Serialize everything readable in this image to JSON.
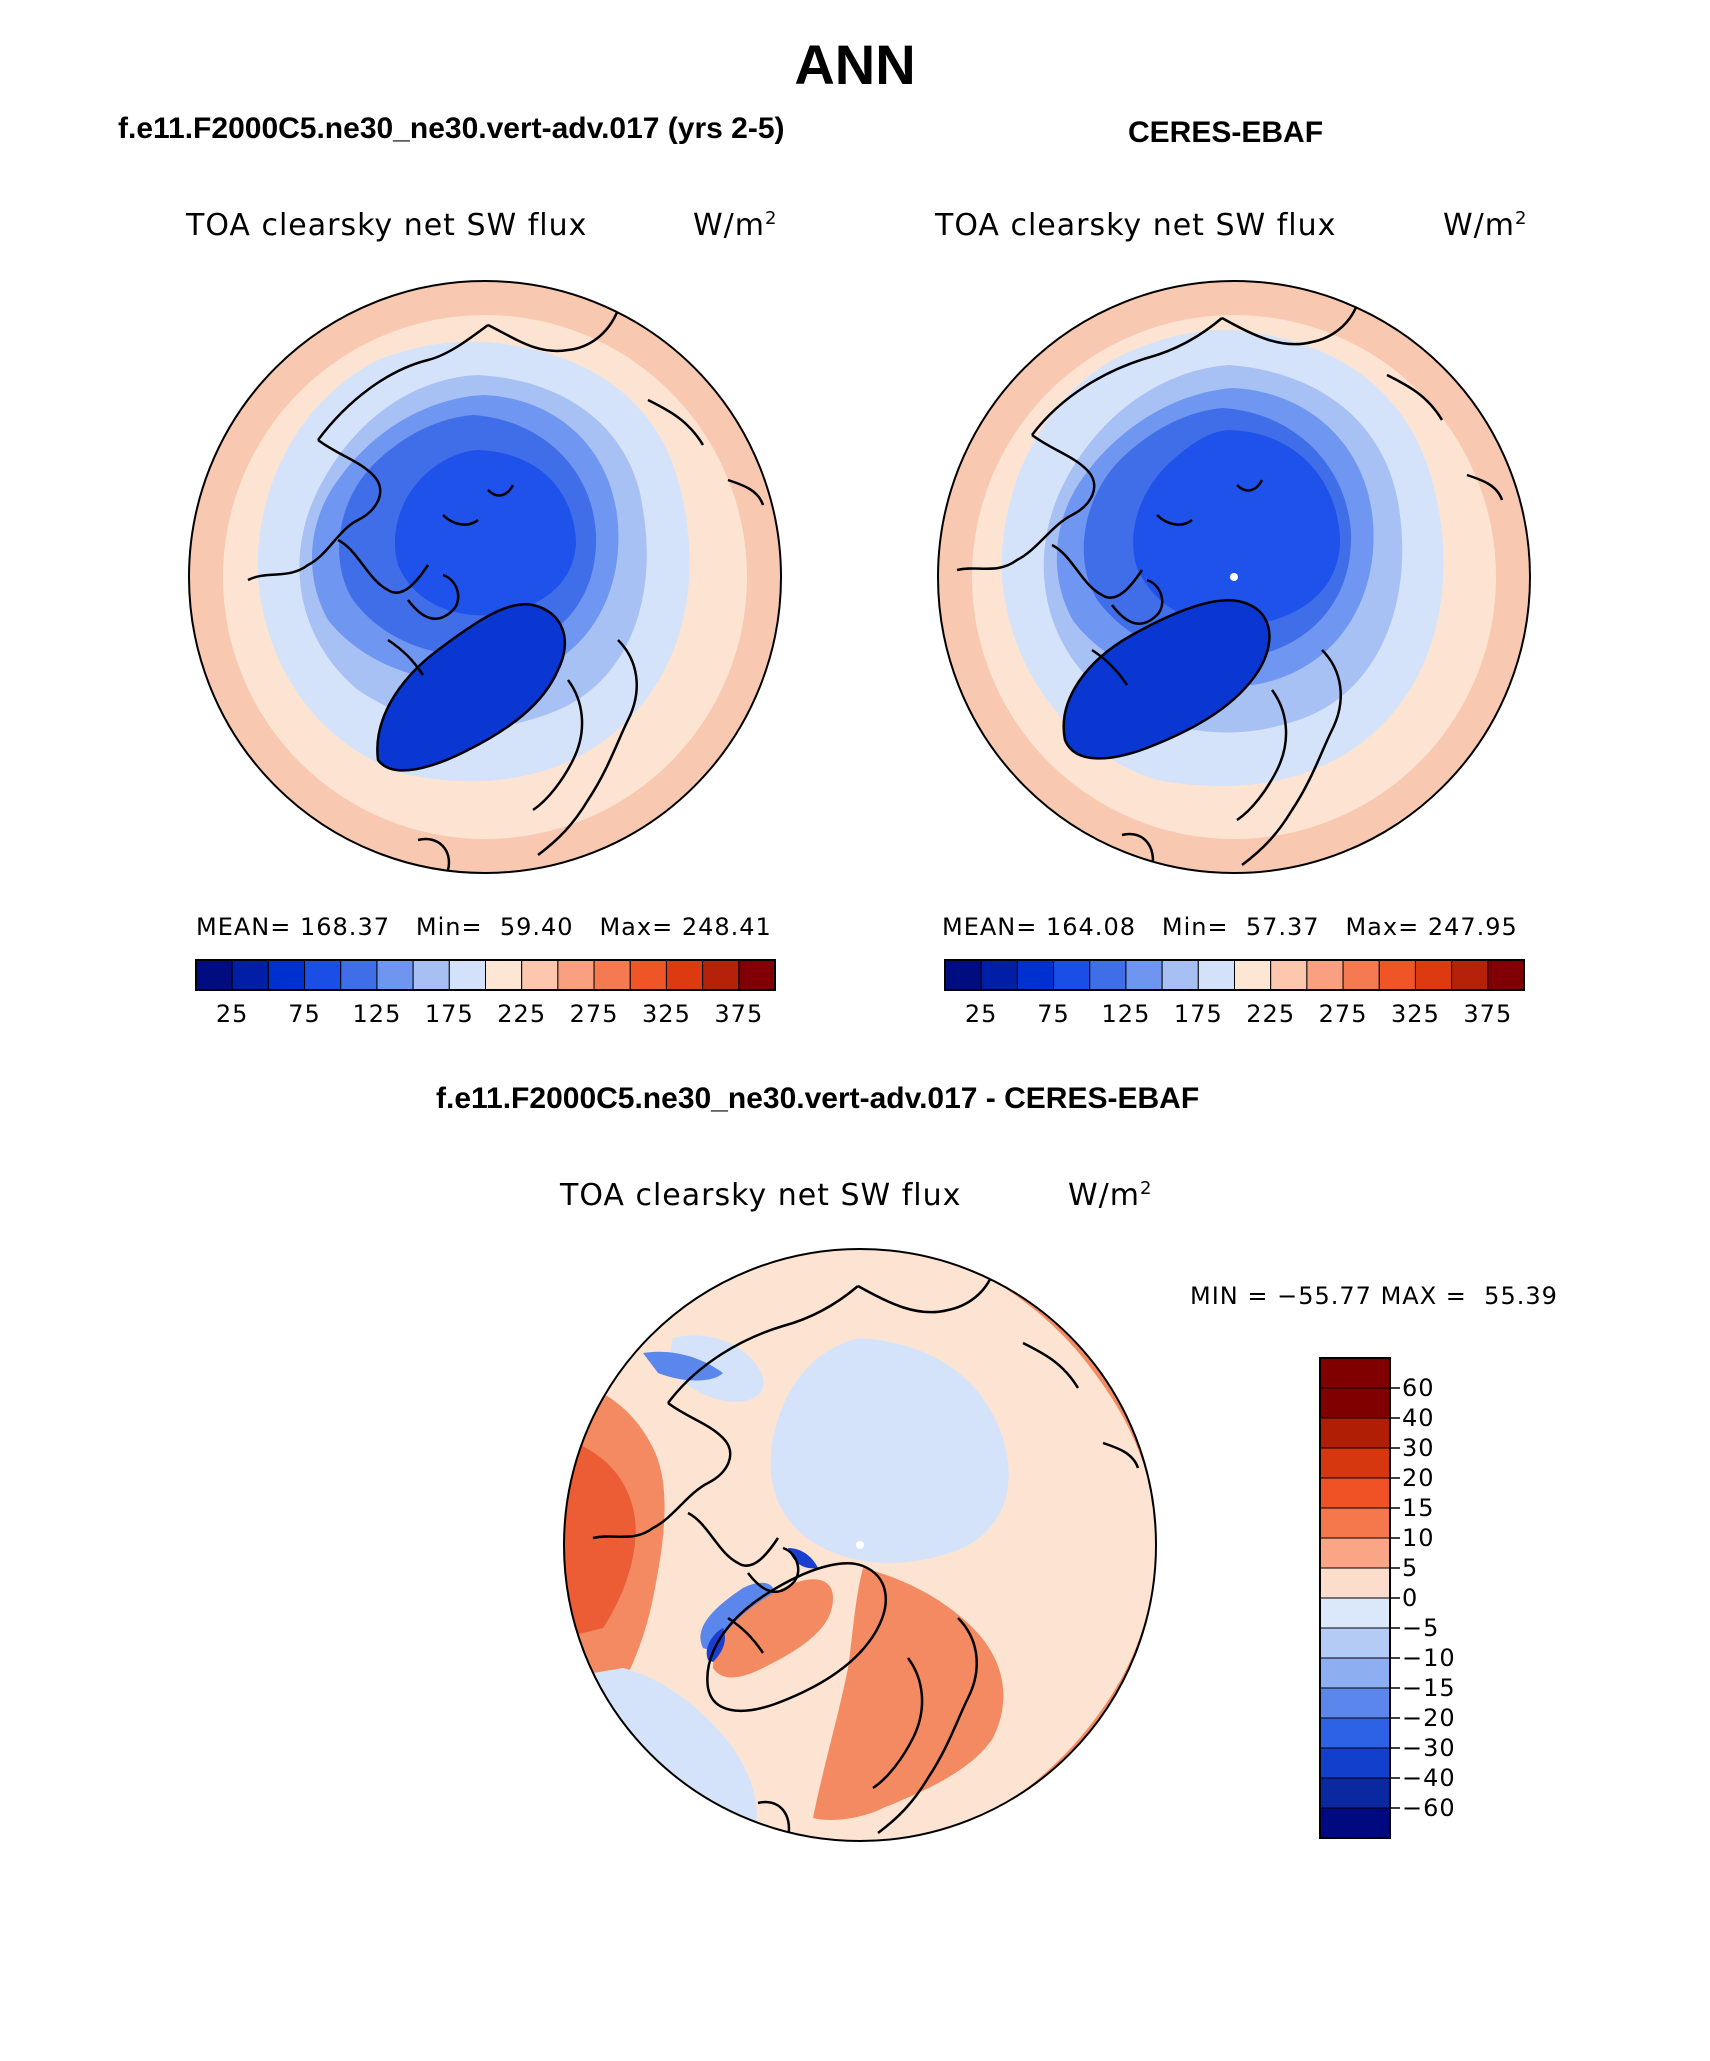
{
  "title": "ANN",
  "panels": [
    {
      "id": "model",
      "title": "f.e11.F2000C5.ne30_ne30.vert-adv.017 (yrs 2-5)",
      "variable": "TOA clearsky net SW flux",
      "units": "W/m",
      "units_sup": "2",
      "stats": {
        "mean_label": "MEAN=",
        "mean": "168.37",
        "min_label": "Min=",
        "min": "59.40",
        "max_label": "Max=",
        "max": "248.41"
      }
    },
    {
      "id": "obs",
      "title": "CERES-EBAF",
      "variable": "TOA clearsky net SW flux",
      "units": "W/m",
      "units_sup": "2",
      "stats": {
        "mean_label": "MEAN=",
        "mean": "164.08",
        "min_label": "Min=",
        "min": "57.37",
        "max_label": "Max=",
        "max": "247.95"
      }
    },
    {
      "id": "diff",
      "title": "f.e11.F2000C5.ne30_ne30.vert-adv.017 - CERES-EBAF",
      "variable": "TOA clearsky net SW flux",
      "units": "W/m",
      "units_sup": "2",
      "stats": {
        "min_label": "MIN =",
        "min": "−55.77",
        "max_label": "MAX =",
        "max": "55.39"
      }
    }
  ],
  "colorbar_main": {
    "colors": [
      "#000d80",
      "#001fa6",
      "#0030d0",
      "#1a4ee6",
      "#3f6ee8",
      "#6e96f0",
      "#a6c0f4",
      "#d3e2fa",
      "#fde6d4",
      "#fcc7ae",
      "#f8a080",
      "#f57a52",
      "#f05527",
      "#de3a12",
      "#b6210a",
      "#800005"
    ],
    "labels": [
      "25",
      "75",
      "125",
      "175",
      "225",
      "275",
      "325",
      "375"
    ]
  },
  "colorbar_diff": {
    "colors": [
      "#800000",
      "#b01e06",
      "#d7370e",
      "#f05226",
      "#f5784c",
      "#f9a586",
      "#fcdccb",
      "#dbe8fb",
      "#b4ccf5",
      "#8daef0",
      "#5b86ec",
      "#2e62e6",
      "#123fcc",
      "#0a28a0",
      "#000a80"
    ],
    "labels": [
      "60",
      "40",
      "30",
      "20",
      "15",
      "10",
      "5",
      "0",
      "−5",
      "−10",
      "−15",
      "−20",
      "−30",
      "−40",
      "−60"
    ]
  },
  "map_colors": {
    "model": {
      "ring_outer": "#f9c8b0",
      "ring_2": "#fde4d2",
      "ring_3": "#d5e3fa",
      "ring_4": "#a7c1f4",
      "ring_5": "#6f96f0",
      "ring_6": "#3f6ee8",
      "core": "#1f52ea",
      "greenland": "#0a36d2"
    },
    "obs": {
      "ring_outer": "#f9c8b0",
      "ring_2": "#fde4d2",
      "ring_3": "#d5e3fa",
      "ring_4": "#a7c1f4",
      "ring_5": "#6f96f0",
      "ring_6": "#3f6ee8",
      "core": "#1f52ea",
      "greenland": "#0a36d2"
    },
    "diff": {
      "base": "#fde4d2",
      "warm": "#f38a62",
      "warm_strong": "#ec5d36",
      "cool": "#d5e3fa",
      "cool_strong": "#5b86ec",
      "cool_edge": "#1a3fd0"
    }
  }
}
